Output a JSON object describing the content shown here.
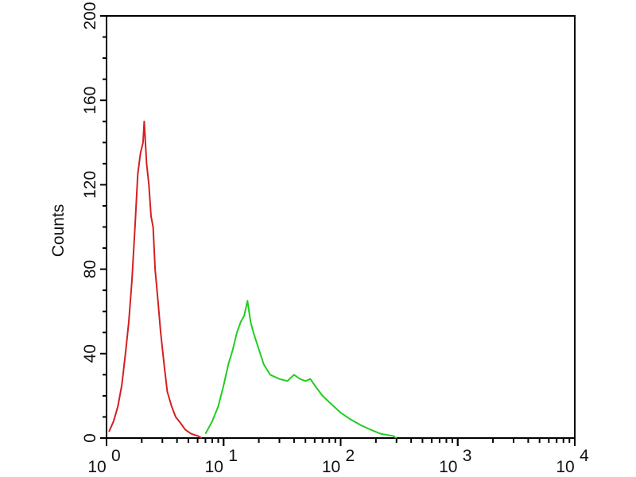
{
  "chart_data": {
    "type": "line",
    "title": "",
    "xlabel": "",
    "ylabel": "Counts",
    "x_scale": "log",
    "xlim": [
      1,
      10000
    ],
    "ylim": [
      0,
      200
    ],
    "grid": false,
    "x_ticks": [
      {
        "base": "10",
        "exp": "0",
        "value": 1
      },
      {
        "base": "10",
        "exp": "1",
        "value": 10
      },
      {
        "base": "10",
        "exp": "2",
        "value": 100
      },
      {
        "base": "10",
        "exp": "3",
        "value": 1000
      },
      {
        "base": "10",
        "exp": "4",
        "value": 10000
      }
    ],
    "y_ticks": [
      "0",
      "40",
      "80",
      "120",
      "160",
      "200"
    ],
    "series": [
      {
        "color": "#d42020",
        "points": [
          [
            1.05,
            3
          ],
          [
            1.15,
            8
          ],
          [
            1.25,
            15
          ],
          [
            1.35,
            25
          ],
          [
            1.45,
            40
          ],
          [
            1.55,
            55
          ],
          [
            1.65,
            75
          ],
          [
            1.75,
            100
          ],
          [
            1.85,
            125
          ],
          [
            1.95,
            135
          ],
          [
            2.05,
            140
          ],
          [
            2.1,
            150
          ],
          [
            2.2,
            130
          ],
          [
            2.3,
            120
          ],
          [
            2.4,
            105
          ],
          [
            2.5,
            100
          ],
          [
            2.6,
            80
          ],
          [
            2.75,
            65
          ],
          [
            2.9,
            50
          ],
          [
            3.1,
            35
          ],
          [
            3.3,
            22
          ],
          [
            3.6,
            15
          ],
          [
            3.9,
            10
          ],
          [
            4.3,
            7
          ],
          [
            4.7,
            4
          ],
          [
            5.3,
            2
          ],
          [
            6,
            1
          ],
          [
            6.5,
            0
          ]
        ]
      },
      {
        "color": "#22cc22",
        "points": [
          [
            7,
            2
          ],
          [
            8,
            8
          ],
          [
            9,
            15
          ],
          [
            10,
            25
          ],
          [
            11,
            35
          ],
          [
            12,
            42
          ],
          [
            13,
            50
          ],
          [
            14,
            55
          ],
          [
            15,
            58
          ],
          [
            16,
            65
          ],
          [
            17,
            55
          ],
          [
            18,
            50
          ],
          [
            20,
            42
          ],
          [
            22,
            35
          ],
          [
            25,
            30
          ],
          [
            30,
            28
          ],
          [
            35,
            27
          ],
          [
            40,
            30
          ],
          [
            45,
            28
          ],
          [
            50,
            27
          ],
          [
            55,
            28
          ],
          [
            60,
            25
          ],
          [
            70,
            20
          ],
          [
            80,
            17
          ],
          [
            100,
            12
          ],
          [
            120,
            9
          ],
          [
            150,
            6
          ],
          [
            180,
            4
          ],
          [
            220,
            2
          ],
          [
            280,
            1
          ],
          [
            300,
            0
          ]
        ]
      }
    ]
  }
}
